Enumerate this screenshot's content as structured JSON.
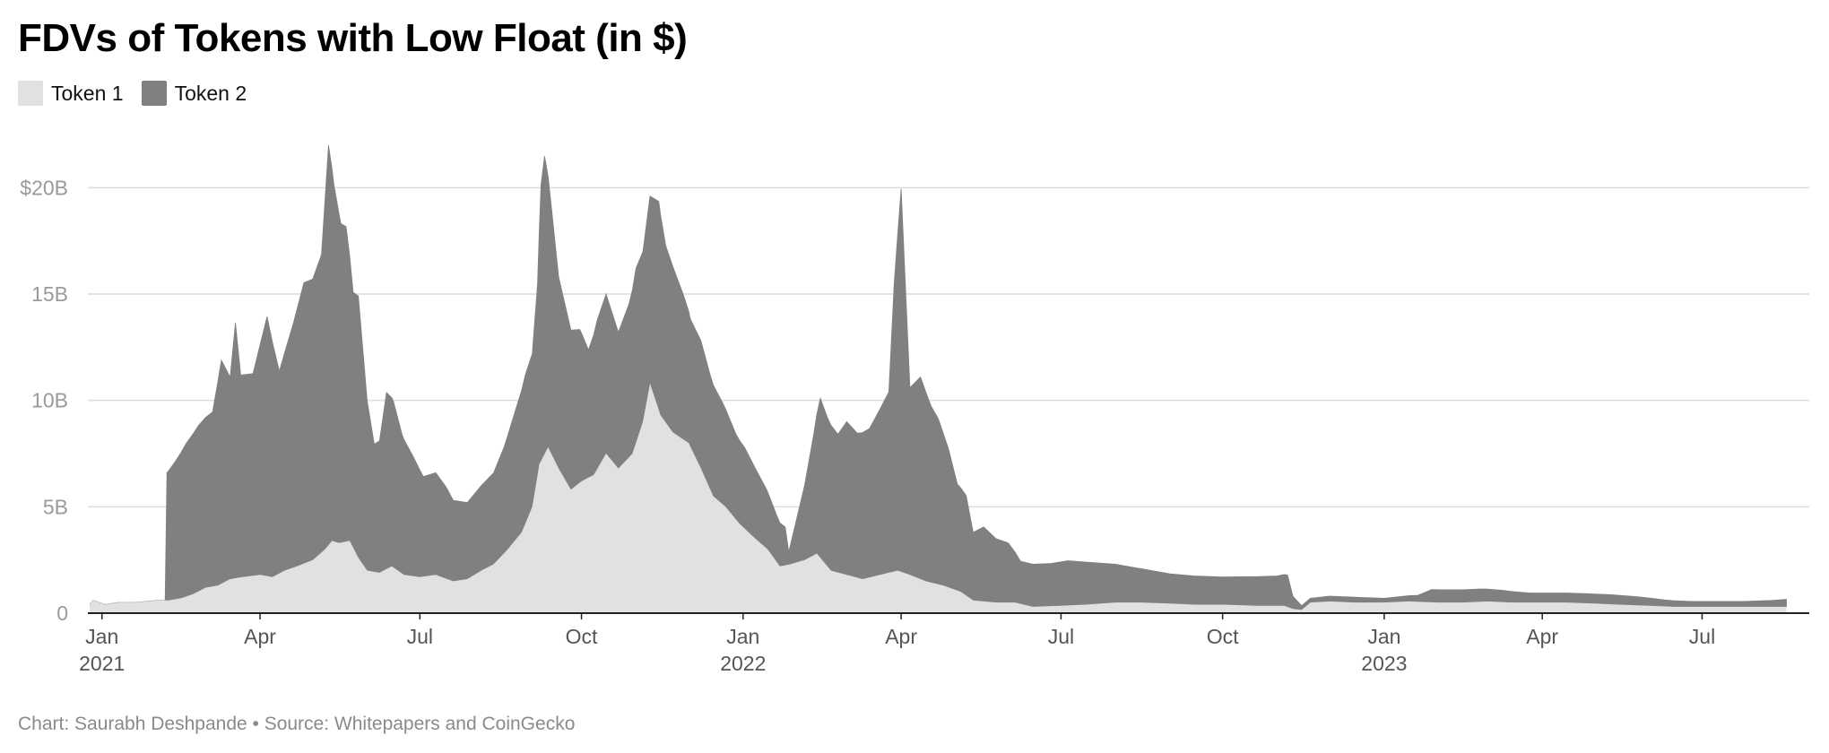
{
  "title": "FDVs of Tokens with Low Float (in $)",
  "footer": "Chart: Saurabh Deshpande • Source: Whitepapers and CoinGecko",
  "chart_data": {
    "type": "area",
    "stacked": true,
    "title": "FDVs of Tokens with Low Float (in $)",
    "xlabel": "",
    "ylabel": "",
    "ylim": [
      0,
      22.5
    ],
    "y_unit": "B",
    "grid": true,
    "legend": "top-left",
    "y_ticks": [
      {
        "value": 0,
        "label": "0"
      },
      {
        "value": 5,
        "label": "5B"
      },
      {
        "value": 10,
        "label": "10B"
      },
      {
        "value": 15,
        "label": "15B"
      },
      {
        "value": 20,
        "label": "$20B"
      }
    ],
    "x_ticks": [
      {
        "date": "2021-01-01",
        "label": "Jan",
        "sublabel": "2021"
      },
      {
        "date": "2021-04-01",
        "label": "Apr",
        "sublabel": ""
      },
      {
        "date": "2021-07-01",
        "label": "Jul",
        "sublabel": ""
      },
      {
        "date": "2021-10-01",
        "label": "Oct",
        "sublabel": ""
      },
      {
        "date": "2022-01-01",
        "label": "Jan",
        "sublabel": "2022"
      },
      {
        "date": "2022-04-01",
        "label": "Apr",
        "sublabel": ""
      },
      {
        "date": "2022-07-01",
        "label": "Jul",
        "sublabel": ""
      },
      {
        "date": "2022-10-01",
        "label": "Oct",
        "sublabel": ""
      },
      {
        "date": "2023-01-01",
        "label": "Jan",
        "sublabel": "2023"
      },
      {
        "date": "2023-04-01",
        "label": "Apr",
        "sublabel": ""
      },
      {
        "date": "2023-07-01",
        "label": "Jul",
        "sublabel": ""
      }
    ],
    "x_range": [
      "2020-12-25",
      "2023-08-31"
    ],
    "series": [
      {
        "name": "Token 1",
        "color": "#e1e1e1",
        "points": [
          [
            "2020-12-25",
            0.4
          ],
          [
            "2020-12-27",
            0.6
          ],
          [
            "2021-01-03",
            0.4
          ],
          [
            "2021-01-10",
            0.5
          ],
          [
            "2021-01-20",
            0.5
          ],
          [
            "2021-02-01",
            0.6
          ],
          [
            "2021-02-08",
            0.6
          ],
          [
            "2021-02-15",
            0.7
          ],
          [
            "2021-02-22",
            0.9
          ],
          [
            "2021-03-01",
            1.2
          ],
          [
            "2021-03-08",
            1.3
          ],
          [
            "2021-03-15",
            1.6
          ],
          [
            "2021-03-22",
            1.7
          ],
          [
            "2021-04-01",
            1.8
          ],
          [
            "2021-04-08",
            1.7
          ],
          [
            "2021-04-15",
            2.0
          ],
          [
            "2021-04-22",
            2.2
          ],
          [
            "2021-05-01",
            2.5
          ],
          [
            "2021-05-08",
            3.0
          ],
          [
            "2021-05-12",
            3.4
          ],
          [
            "2021-05-16",
            3.3
          ],
          [
            "2021-05-22",
            3.4
          ],
          [
            "2021-05-27",
            2.6
          ],
          [
            "2021-06-01",
            2.0
          ],
          [
            "2021-06-08",
            1.9
          ],
          [
            "2021-06-15",
            2.2
          ],
          [
            "2021-06-22",
            1.8
          ],
          [
            "2021-07-01",
            1.7
          ],
          [
            "2021-07-10",
            1.8
          ],
          [
            "2021-07-20",
            1.5
          ],
          [
            "2021-07-28",
            1.6
          ],
          [
            "2021-08-05",
            2.0
          ],
          [
            "2021-08-12",
            2.3
          ],
          [
            "2021-08-20",
            3.0
          ],
          [
            "2021-08-28",
            3.8
          ],
          [
            "2021-09-03",
            5.0
          ],
          [
            "2021-09-07",
            7.0
          ],
          [
            "2021-09-12",
            7.8
          ],
          [
            "2021-09-18",
            6.8
          ],
          [
            "2021-09-25",
            5.8
          ],
          [
            "2021-10-01",
            6.2
          ],
          [
            "2021-10-08",
            6.5
          ],
          [
            "2021-10-15",
            7.5
          ],
          [
            "2021-10-22",
            6.8
          ],
          [
            "2021-10-30",
            7.5
          ],
          [
            "2021-11-05",
            9.0
          ],
          [
            "2021-11-09",
            10.8
          ],
          [
            "2021-11-15",
            9.3
          ],
          [
            "2021-11-22",
            8.5
          ],
          [
            "2021-12-01",
            8.0
          ],
          [
            "2021-12-08",
            6.8
          ],
          [
            "2021-12-15",
            5.5
          ],
          [
            "2021-12-22",
            5.0
          ],
          [
            "2021-12-30",
            4.2
          ],
          [
            "2022-01-08",
            3.5
          ],
          [
            "2022-01-15",
            3.0
          ],
          [
            "2022-01-22",
            2.2
          ],
          [
            "2022-01-28",
            2.3
          ],
          [
            "2022-02-05",
            2.5
          ],
          [
            "2022-02-12",
            2.8
          ],
          [
            "2022-02-20",
            2.0
          ],
          [
            "2022-03-01",
            1.8
          ],
          [
            "2022-03-10",
            1.6
          ],
          [
            "2022-03-20",
            1.8
          ],
          [
            "2022-03-30",
            2.0
          ],
          [
            "2022-04-06",
            1.8
          ],
          [
            "2022-04-15",
            1.5
          ],
          [
            "2022-04-25",
            1.3
          ],
          [
            "2022-05-05",
            1.0
          ],
          [
            "2022-05-12",
            0.6
          ],
          [
            "2022-05-25",
            0.5
          ],
          [
            "2022-06-05",
            0.5
          ],
          [
            "2022-06-15",
            0.3
          ],
          [
            "2022-07-01",
            0.35
          ],
          [
            "2022-07-15",
            0.4
          ],
          [
            "2022-08-01",
            0.5
          ],
          [
            "2022-08-15",
            0.5
          ],
          [
            "2022-09-01",
            0.45
          ],
          [
            "2022-09-15",
            0.4
          ],
          [
            "2022-10-01",
            0.4
          ],
          [
            "2022-10-20",
            0.35
          ],
          [
            "2022-11-05",
            0.35
          ],
          [
            "2022-11-10",
            0.2
          ],
          [
            "2022-11-15",
            0.15
          ],
          [
            "2022-11-20",
            0.5
          ],
          [
            "2022-12-01",
            0.55
          ],
          [
            "2022-12-15",
            0.5
          ],
          [
            "2023-01-01",
            0.5
          ],
          [
            "2023-01-15",
            0.55
          ],
          [
            "2023-02-01",
            0.5
          ],
          [
            "2023-02-15",
            0.5
          ],
          [
            "2023-03-01",
            0.55
          ],
          [
            "2023-03-15",
            0.5
          ],
          [
            "2023-04-01",
            0.5
          ],
          [
            "2023-04-15",
            0.5
          ],
          [
            "2023-05-01",
            0.45
          ],
          [
            "2023-05-15",
            0.4
          ],
          [
            "2023-06-01",
            0.35
          ],
          [
            "2023-06-15",
            0.3
          ],
          [
            "2023-07-01",
            0.3
          ],
          [
            "2023-07-15",
            0.3
          ],
          [
            "2023-08-01",
            0.3
          ],
          [
            "2023-08-18",
            0.3
          ]
        ]
      },
      {
        "name": "Token 2",
        "color": "#808080",
        "points": [
          [
            "2020-12-25",
            0.0
          ],
          [
            "2021-02-06",
            0.0
          ],
          [
            "2021-02-07",
            6.0
          ],
          [
            "2021-02-12",
            6.5
          ],
          [
            "2021-02-18",
            7.2
          ],
          [
            "2021-02-25",
            7.8
          ],
          [
            "2021-03-01",
            8.0
          ],
          [
            "2021-03-05",
            8.2
          ],
          [
            "2021-03-10",
            10.5
          ],
          [
            "2021-03-15",
            9.5
          ],
          [
            "2021-03-18",
            12.0
          ],
          [
            "2021-03-21",
            9.5
          ],
          [
            "2021-03-28",
            9.5
          ],
          [
            "2021-04-01",
            10.8
          ],
          [
            "2021-04-05",
            12.2
          ],
          [
            "2021-04-12",
            9.5
          ],
          [
            "2021-04-20",
            11.5
          ],
          [
            "2021-04-26",
            13.2
          ],
          [
            "2021-05-01",
            13.2
          ],
          [
            "2021-05-06",
            14.0
          ],
          [
            "2021-05-10",
            18.8
          ],
          [
            "2021-05-13",
            16.8
          ],
          [
            "2021-05-17",
            15.0
          ],
          [
            "2021-05-20",
            14.8
          ],
          [
            "2021-05-24",
            12.0
          ],
          [
            "2021-05-27",
            12.3
          ],
          [
            "2021-06-01",
            8.0
          ],
          [
            "2021-06-05",
            6.0
          ],
          [
            "2021-06-08",
            6.2
          ],
          [
            "2021-06-12",
            8.3
          ],
          [
            "2021-06-16",
            7.8
          ],
          [
            "2021-06-21",
            6.5
          ],
          [
            "2021-06-28",
            5.5
          ],
          [
            "2021-07-03",
            4.7
          ],
          [
            "2021-07-10",
            4.8
          ],
          [
            "2021-07-16",
            4.3
          ],
          [
            "2021-07-20",
            3.8
          ],
          [
            "2021-07-28",
            3.6
          ],
          [
            "2021-08-05",
            4.0
          ],
          [
            "2021-08-12",
            4.3
          ],
          [
            "2021-08-18",
            5.0
          ],
          [
            "2021-08-25",
            6.2
          ],
          [
            "2021-08-30",
            7.0
          ],
          [
            "2021-09-03",
            7.2
          ],
          [
            "2021-09-06",
            9.0
          ],
          [
            "2021-09-08",
            13.0
          ],
          [
            "2021-09-10",
            14.0
          ],
          [
            "2021-09-14",
            11.5
          ],
          [
            "2021-09-18",
            9.0
          ],
          [
            "2021-09-25",
            7.5
          ],
          [
            "2021-09-30",
            7.2
          ],
          [
            "2021-10-05",
            6.0
          ],
          [
            "2021-10-10",
            7.0
          ],
          [
            "2021-10-15",
            7.5
          ],
          [
            "2021-10-22",
            6.4
          ],
          [
            "2021-10-28",
            7.2
          ],
          [
            "2021-11-01",
            8.2
          ],
          [
            "2021-11-05",
            8.0
          ],
          [
            "2021-11-10",
            9.0
          ],
          [
            "2021-11-14",
            9.8
          ],
          [
            "2021-11-18",
            8.3
          ],
          [
            "2021-11-22",
            7.8
          ],
          [
            "2021-11-28",
            6.8
          ],
          [
            "2021-12-02",
            6.0
          ],
          [
            "2021-12-08",
            6.0
          ],
          [
            "2021-12-13",
            5.4
          ],
          [
            "2021-12-20",
            4.8
          ],
          [
            "2021-12-28",
            4.0
          ],
          [
            "2022-01-02",
            3.8
          ],
          [
            "2022-01-08",
            3.3
          ],
          [
            "2022-01-14",
            2.8
          ],
          [
            "2022-01-20",
            2.2
          ],
          [
            "2022-01-25",
            1.8
          ],
          [
            "2022-01-27",
            0.6
          ],
          [
            "2022-02-01",
            2.2
          ],
          [
            "2022-02-05",
            3.5
          ],
          [
            "2022-02-10",
            5.6
          ],
          [
            "2022-02-14",
            7.5
          ],
          [
            "2022-02-18",
            7.0
          ],
          [
            "2022-02-24",
            6.5
          ],
          [
            "2022-03-01",
            7.2
          ],
          [
            "2022-03-07",
            6.8
          ],
          [
            "2022-03-14",
            7.0
          ],
          [
            "2022-03-20",
            7.8
          ],
          [
            "2022-03-25",
            8.5
          ],
          [
            "2022-03-28",
            13.5
          ],
          [
            "2022-04-01",
            18.0
          ],
          [
            "2022-04-06",
            8.8
          ],
          [
            "2022-04-12",
            9.5
          ],
          [
            "2022-04-18",
            8.3
          ],
          [
            "2022-04-22",
            7.8
          ],
          [
            "2022-04-28",
            6.5
          ],
          [
            "2022-05-03",
            5.0
          ],
          [
            "2022-05-08",
            4.7
          ],
          [
            "2022-05-12",
            3.2
          ],
          [
            "2022-05-18",
            3.5
          ],
          [
            "2022-05-25",
            3.0
          ],
          [
            "2022-06-01",
            2.8
          ],
          [
            "2022-06-08",
            2.0
          ],
          [
            "2022-06-15",
            2.0
          ],
          [
            "2022-06-25",
            2.0
          ],
          [
            "2022-07-05",
            2.1
          ],
          [
            "2022-07-15",
            2.0
          ],
          [
            "2022-08-01",
            1.8
          ],
          [
            "2022-08-15",
            1.6
          ],
          [
            "2022-09-01",
            1.4
          ],
          [
            "2022-09-15",
            1.35
          ],
          [
            "2022-10-01",
            1.3
          ],
          [
            "2022-10-15",
            1.35
          ],
          [
            "2022-11-01",
            1.4
          ],
          [
            "2022-11-07",
            1.5
          ],
          [
            "2022-11-10",
            0.6
          ],
          [
            "2022-11-15",
            0.2
          ],
          [
            "2022-11-20",
            0.2
          ],
          [
            "2022-12-01",
            0.25
          ],
          [
            "2022-12-15",
            0.25
          ],
          [
            "2023-01-01",
            0.2
          ],
          [
            "2023-01-20",
            0.3
          ],
          [
            "2023-01-28",
            0.6
          ],
          [
            "2023-02-10",
            0.6
          ],
          [
            "2023-02-25",
            0.6
          ],
          [
            "2023-03-10",
            0.55
          ],
          [
            "2023-03-25",
            0.45
          ],
          [
            "2023-04-10",
            0.45
          ],
          [
            "2023-04-25",
            0.45
          ],
          [
            "2023-05-10",
            0.45
          ],
          [
            "2023-05-25",
            0.4
          ],
          [
            "2023-06-10",
            0.3
          ],
          [
            "2023-06-25",
            0.25
          ],
          [
            "2023-07-10",
            0.25
          ],
          [
            "2023-07-25",
            0.25
          ],
          [
            "2023-08-10",
            0.3
          ],
          [
            "2023-08-18",
            0.35
          ]
        ]
      }
    ]
  }
}
